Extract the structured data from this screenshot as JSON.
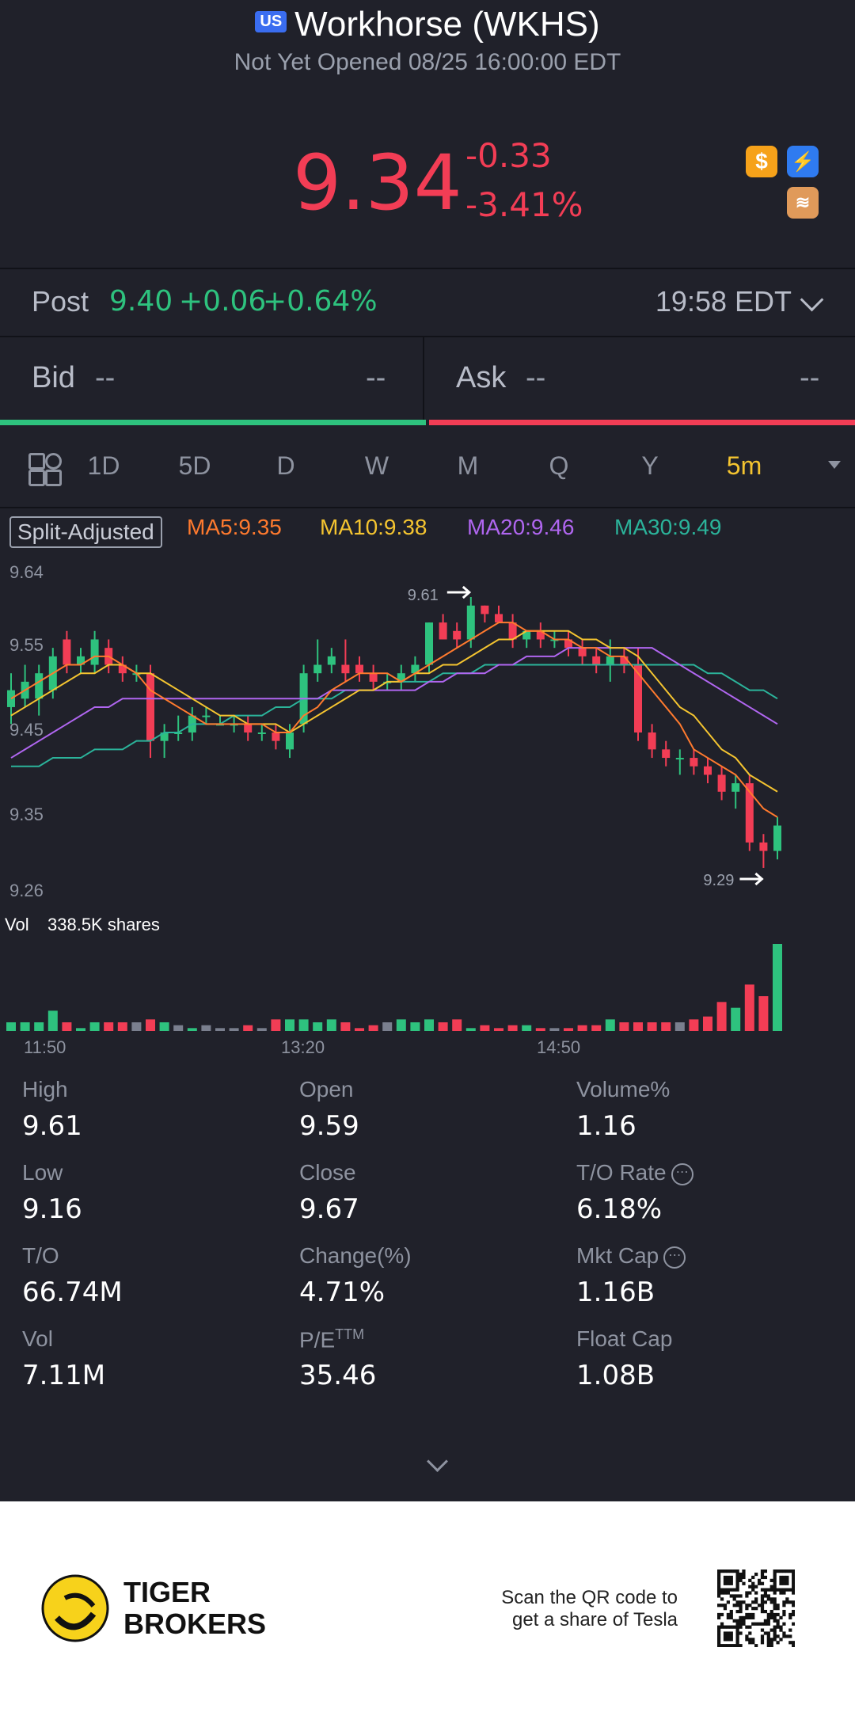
{
  "header": {
    "market_badge": "US",
    "title": "Workhorse (WKHS)",
    "status": "Not Yet Opened 08/25 16:00:00 EDT"
  },
  "quote": {
    "price": "9.34",
    "change": "-0.33",
    "change_pct": "-3.41%",
    "badges": [
      "dollar-icon",
      "lightning-level1-icon",
      "layers-a-icon"
    ]
  },
  "post": {
    "label": "Post",
    "price": "9.40",
    "change": "+0.06",
    "change_pct": "+0.64%",
    "time": "19:58 EDT"
  },
  "bid": {
    "label": "Bid",
    "price": "--",
    "size": "--"
  },
  "ask": {
    "label": "Ask",
    "price": "--",
    "size": "--"
  },
  "bid_ask_ratio": 0.5,
  "periods": [
    "1D",
    "5D",
    "D",
    "W",
    "M",
    "Q",
    "Y",
    "5m"
  ],
  "active_period": "5m",
  "ma": {
    "split": "Split-Adjusted",
    "ma5": "MA5:9.35",
    "ma10": "MA10:9.38",
    "ma20": "MA20:9.46",
    "ma30": "MA30:9.49"
  },
  "colors": {
    "up": "#2ec27e",
    "down": "#f23d55",
    "ma5": "#ff7a2e",
    "ma10": "#f4c430",
    "ma20": "#b066f0",
    "ma30": "#2bb39a",
    "active": "#f4c430"
  },
  "chart_data": {
    "type": "candlestick",
    "y_axis_ticks": [
      "9.64",
      "9.55",
      "9.45",
      "9.35",
      "9.26"
    ],
    "ylim": [
      9.26,
      9.64
    ],
    "high_marker": "9.61",
    "low_marker": "9.29",
    "volume_label": "Vol",
    "volume_value": "338.5K shares",
    "x_ticks": [
      "11:50",
      "13:20",
      "14:50"
    ],
    "candles": [
      {
        "o": 9.48,
        "h": 9.52,
        "l": 9.46,
        "c": 9.5
      },
      {
        "o": 9.49,
        "h": 9.53,
        "l": 9.48,
        "c": 9.51
      },
      {
        "o": 9.49,
        "h": 9.53,
        "l": 9.47,
        "c": 9.52
      },
      {
        "o": 9.5,
        "h": 9.55,
        "l": 9.49,
        "c": 9.54
      },
      {
        "o": 9.56,
        "h": 9.57,
        "l": 9.52,
        "c": 9.53
      },
      {
        "o": 9.53,
        "h": 9.55,
        "l": 9.52,
        "c": 9.54
      },
      {
        "o": 9.53,
        "h": 9.57,
        "l": 9.52,
        "c": 9.56
      },
      {
        "o": 9.55,
        "h": 9.56,
        "l": 9.52,
        "c": 9.53
      },
      {
        "o": 9.53,
        "h": 9.54,
        "l": 9.51,
        "c": 9.52
      },
      {
        "o": 9.52,
        "h": 9.53,
        "l": 9.51,
        "c": 9.52
      },
      {
        "o": 9.52,
        "h": 9.53,
        "l": 9.42,
        "c": 9.44
      },
      {
        "o": 9.44,
        "h": 9.46,
        "l": 9.42,
        "c": 9.45
      },
      {
        "o": 9.45,
        "h": 9.47,
        "l": 9.44,
        "c": 9.45
      },
      {
        "o": 9.45,
        "h": 9.48,
        "l": 9.44,
        "c": 9.47
      },
      {
        "o": 9.47,
        "h": 9.48,
        "l": 9.46,
        "c": 9.47
      },
      {
        "o": 9.46,
        "h": 9.47,
        "l": 9.46,
        "c": 9.46
      },
      {
        "o": 9.46,
        "h": 9.47,
        "l": 9.45,
        "c": 9.46
      },
      {
        "o": 9.46,
        "h": 9.47,
        "l": 9.44,
        "c": 9.45
      },
      {
        "o": 9.45,
        "h": 9.46,
        "l": 9.44,
        "c": 9.45
      },
      {
        "o": 9.45,
        "h": 9.46,
        "l": 9.43,
        "c": 9.44
      },
      {
        "o": 9.43,
        "h": 9.46,
        "l": 9.42,
        "c": 9.45
      },
      {
        "o": 9.46,
        "h": 9.53,
        "l": 9.45,
        "c": 9.52
      },
      {
        "o": 9.52,
        "h": 9.56,
        "l": 9.51,
        "c": 9.53
      },
      {
        "o": 9.53,
        "h": 9.55,
        "l": 9.52,
        "c": 9.54
      },
      {
        "o": 9.53,
        "h": 9.56,
        "l": 9.51,
        "c": 9.52
      },
      {
        "o": 9.53,
        "h": 9.54,
        "l": 9.51,
        "c": 9.52
      },
      {
        "o": 9.52,
        "h": 9.53,
        "l": 9.5,
        "c": 9.51
      },
      {
        "o": 9.51,
        "h": 9.52,
        "l": 9.5,
        "c": 9.51
      },
      {
        "o": 9.51,
        "h": 9.53,
        "l": 9.5,
        "c": 9.52
      },
      {
        "o": 9.52,
        "h": 9.54,
        "l": 9.51,
        "c": 9.53
      },
      {
        "o": 9.53,
        "h": 9.58,
        "l": 9.52,
        "c": 9.58
      },
      {
        "o": 9.58,
        "h": 9.59,
        "l": 9.56,
        "c": 9.56
      },
      {
        "o": 9.57,
        "h": 9.58,
        "l": 9.55,
        "c": 9.56
      },
      {
        "o": 9.56,
        "h": 9.61,
        "l": 9.55,
        "c": 9.6
      },
      {
        "o": 9.6,
        "h": 9.6,
        "l": 9.58,
        "c": 9.59
      },
      {
        "o": 9.59,
        "h": 9.6,
        "l": 9.58,
        "c": 9.58
      },
      {
        "o": 9.58,
        "h": 9.59,
        "l": 9.55,
        "c": 9.56
      },
      {
        "o": 9.56,
        "h": 9.57,
        "l": 9.55,
        "c": 9.57
      },
      {
        "o": 9.57,
        "h": 9.58,
        "l": 9.55,
        "c": 9.56
      },
      {
        "o": 9.56,
        "h": 9.57,
        "l": 9.55,
        "c": 9.56
      },
      {
        "o": 9.56,
        "h": 9.57,
        "l": 9.54,
        "c": 9.55
      },
      {
        "o": 9.55,
        "h": 9.56,
        "l": 9.53,
        "c": 9.54
      },
      {
        "o": 9.54,
        "h": 9.55,
        "l": 9.52,
        "c": 9.53
      },
      {
        "o": 9.53,
        "h": 9.56,
        "l": 9.51,
        "c": 9.54
      },
      {
        "o": 9.54,
        "h": 9.55,
        "l": 9.52,
        "c": 9.53
      },
      {
        "o": 9.53,
        "h": 9.55,
        "l": 9.44,
        "c": 9.45
      },
      {
        "o": 9.45,
        "h": 9.46,
        "l": 9.42,
        "c": 9.43
      },
      {
        "o": 9.43,
        "h": 9.44,
        "l": 9.41,
        "c": 9.42
      },
      {
        "o": 9.42,
        "h": 9.43,
        "l": 9.4,
        "c": 9.42
      },
      {
        "o": 9.42,
        "h": 9.43,
        "l": 9.4,
        "c": 9.41
      },
      {
        "o": 9.41,
        "h": 9.42,
        "l": 9.39,
        "c": 9.4
      },
      {
        "o": 9.4,
        "h": 9.41,
        "l": 9.37,
        "c": 9.38
      },
      {
        "o": 9.38,
        "h": 9.4,
        "l": 9.36,
        "c": 9.39
      },
      {
        "o": 9.39,
        "h": 9.4,
        "l": 9.31,
        "c": 9.32
      },
      {
        "o": 9.32,
        "h": 9.33,
        "l": 9.29,
        "c": 9.31
      },
      {
        "o": 9.31,
        "h": 9.35,
        "l": 9.3,
        "c": 9.34
      }
    ],
    "ma5": [
      9.49,
      9.5,
      9.51,
      9.52,
      9.53,
      9.53,
      9.54,
      9.54,
      9.53,
      9.52,
      9.5,
      9.49,
      9.48,
      9.47,
      9.46,
      9.46,
      9.46,
      9.46,
      9.46,
      9.45,
      9.45,
      9.47,
      9.48,
      9.5,
      9.51,
      9.52,
      9.52,
      9.52,
      9.51,
      9.52,
      9.53,
      9.54,
      9.55,
      9.56,
      9.57,
      9.58,
      9.58,
      9.57,
      9.57,
      9.56,
      9.56,
      9.55,
      9.55,
      9.54,
      9.54,
      9.52,
      9.5,
      9.48,
      9.46,
      9.43,
      9.42,
      9.41,
      9.4,
      9.38,
      9.36,
      9.35
    ],
    "ma10": [
      9.47,
      9.48,
      9.49,
      9.5,
      9.51,
      9.52,
      9.52,
      9.53,
      9.53,
      9.52,
      9.52,
      9.51,
      9.5,
      9.49,
      9.48,
      9.47,
      9.47,
      9.46,
      9.46,
      9.46,
      9.45,
      9.46,
      9.47,
      9.48,
      9.49,
      9.5,
      9.5,
      9.51,
      9.51,
      9.52,
      9.52,
      9.53,
      9.53,
      9.54,
      9.55,
      9.56,
      9.56,
      9.57,
      9.57,
      9.57,
      9.57,
      9.56,
      9.56,
      9.55,
      9.55,
      9.54,
      9.52,
      9.5,
      9.48,
      9.47,
      9.45,
      9.43,
      9.42,
      9.4,
      9.39,
      9.38
    ],
    "ma20": [
      9.42,
      9.43,
      9.44,
      9.45,
      9.46,
      9.47,
      9.48,
      9.48,
      9.49,
      9.49,
      9.49,
      9.49,
      9.49,
      9.49,
      9.49,
      9.49,
      9.49,
      9.49,
      9.49,
      9.49,
      9.49,
      9.49,
      9.49,
      9.5,
      9.5,
      9.5,
      9.5,
      9.5,
      9.5,
      9.5,
      9.51,
      9.51,
      9.52,
      9.52,
      9.52,
      9.53,
      9.53,
      9.54,
      9.54,
      9.54,
      9.55,
      9.55,
      9.55,
      9.55,
      9.55,
      9.55,
      9.55,
      9.54,
      9.53,
      9.52,
      9.51,
      9.5,
      9.49,
      9.48,
      9.47,
      9.46
    ],
    "ma30": [
      9.41,
      9.41,
      9.41,
      9.42,
      9.42,
      9.42,
      9.43,
      9.43,
      9.43,
      9.44,
      9.44,
      9.45,
      9.45,
      9.46,
      9.46,
      9.46,
      9.47,
      9.47,
      9.47,
      9.48,
      9.48,
      9.49,
      9.49,
      9.49,
      9.5,
      9.5,
      9.5,
      9.51,
      9.51,
      9.51,
      9.51,
      9.52,
      9.52,
      9.52,
      9.53,
      9.53,
      9.53,
      9.53,
      9.53,
      9.53,
      9.53,
      9.53,
      9.53,
      9.53,
      9.53,
      9.53,
      9.53,
      9.53,
      9.53,
      9.53,
      9.52,
      9.52,
      9.51,
      9.5,
      9.5,
      9.49
    ],
    "volumes": [
      3,
      3,
      3,
      7,
      3,
      1,
      3,
      3,
      3,
      3,
      4,
      3,
      2,
      1,
      2,
      1,
      1,
      2,
      1,
      4,
      4,
      4,
      3,
      4,
      3,
      1,
      2,
      3,
      4,
      3,
      4,
      3,
      4,
      1,
      2,
      1,
      2,
      2,
      1,
      1,
      1,
      2,
      2,
      4,
      3,
      3,
      3,
      3,
      3,
      4,
      5,
      10,
      8,
      16,
      12,
      30
    ]
  },
  "stats": [
    {
      "label": "High",
      "value": "9.61"
    },
    {
      "label": "Open",
      "value": "9.59"
    },
    {
      "label": "Volume%",
      "value": "1.16"
    },
    {
      "label": "Low",
      "value": "9.16"
    },
    {
      "label": "Close",
      "value": "9.67"
    },
    {
      "label": "T/O Rate",
      "value": "6.18%",
      "info": true
    },
    {
      "label": "T/O",
      "value": "66.74M"
    },
    {
      "label": "Change(%)",
      "value": "4.71%"
    },
    {
      "label": "Mkt Cap",
      "value": "1.16B",
      "info": true
    },
    {
      "label": "Vol",
      "value": "7.11M"
    },
    {
      "label": "P/E",
      "sup": "TTM",
      "value": "35.46"
    },
    {
      "label": "Float Cap",
      "value": "1.08B"
    }
  ],
  "footer": {
    "brand_line1": "TIGER",
    "brand_line2": "BROKERS",
    "scan_line1": "Scan the QR code to",
    "scan_line2": "get a share of Tesla"
  }
}
